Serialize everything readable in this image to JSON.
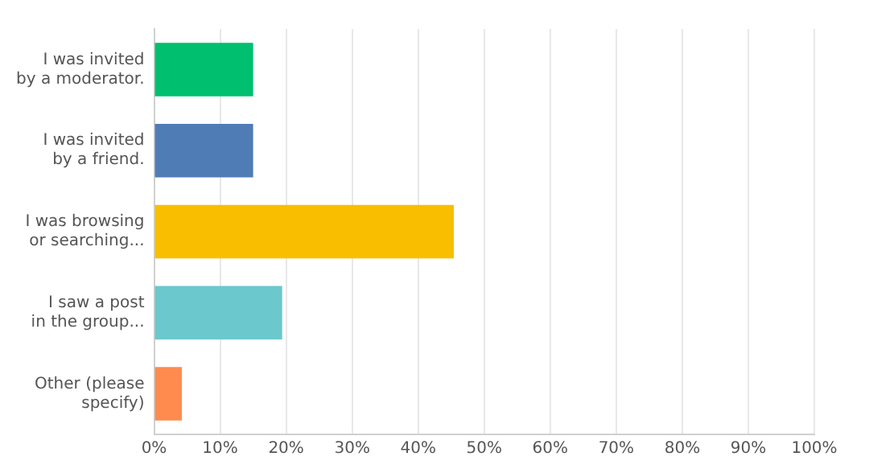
{
  "chart_data": {
    "type": "bar",
    "orientation": "horizontal",
    "categories": [
      "I was invited\nby a moderator.",
      "I was invited\nby a friend.",
      "I was browsing\nor searching...",
      "I saw a post\nin the group...",
      "Other (please\nspecify)"
    ],
    "values": [
      15.0,
      15.0,
      45.4,
      19.4,
      4.2
    ],
    "colors": [
      "#00bf6f",
      "#507cb6",
      "#f9be00",
      "#6bc8cd",
      "#ff8b4f"
    ],
    "xlim": [
      0,
      100
    ],
    "xticks": [
      {
        "value": 0,
        "label": "0%"
      },
      {
        "value": 10,
        "label": "10%"
      },
      {
        "value": 20,
        "label": "20%"
      },
      {
        "value": 30,
        "label": "30%"
      },
      {
        "value": 40,
        "label": "40%"
      },
      {
        "value": 50,
        "label": "50%"
      },
      {
        "value": 60,
        "label": "60%"
      },
      {
        "value": 70,
        "label": "70%"
      },
      {
        "value": 80,
        "label": "80%"
      },
      {
        "value": 90,
        "label": "90%"
      },
      {
        "value": 100,
        "label": "100%"
      }
    ],
    "grid": "x",
    "legend": false
  }
}
